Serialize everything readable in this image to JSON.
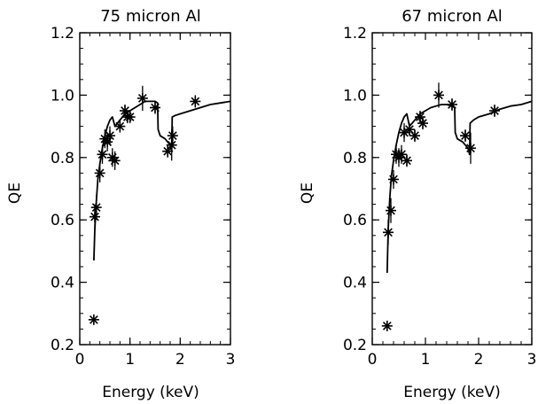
{
  "chart_data": [
    {
      "type": "scatter",
      "title": "75 micron Al",
      "xlabel": "Energy (keV)",
      "ylabel": "QE",
      "xlim": [
        0,
        3
      ],
      "ylim": [
        0.2,
        1.2
      ],
      "xticks": [
        "0",
        "1",
        "2",
        "3"
      ],
      "yticks": [
        "0.2",
        "0.4",
        "0.6",
        "0.8",
        "1.0",
        "1.2"
      ],
      "grid": false,
      "series": [
        {
          "kind": "line",
          "x": [
            0.28,
            0.3,
            0.33,
            0.36,
            0.4,
            0.45,
            0.5,
            0.55,
            0.6,
            0.65,
            0.7,
            0.75,
            0.8,
            0.85,
            0.9,
            1.0,
            1.1,
            1.2,
            1.3,
            1.4,
            1.5,
            1.55,
            1.56,
            1.6,
            1.7,
            1.8,
            1.83,
            1.84,
            1.9,
            2.0,
            2.2,
            2.4,
            2.6,
            2.8,
            3.0
          ],
          "y": [
            0.47,
            0.57,
            0.66,
            0.73,
            0.78,
            0.83,
            0.87,
            0.9,
            0.92,
            0.93,
            0.9,
            0.91,
            0.92,
            0.93,
            0.94,
            0.95,
            0.96,
            0.97,
            0.98,
            0.98,
            0.98,
            0.975,
            0.89,
            0.87,
            0.86,
            0.84,
            0.82,
            0.93,
            0.935,
            0.94,
            0.95,
            0.96,
            0.97,
            0.975,
            0.98
          ]
        },
        {
          "kind": "points",
          "x": [
            0.28,
            0.3,
            0.33,
            0.4,
            0.45,
            0.5,
            0.55,
            0.6,
            0.65,
            0.7,
            0.8,
            0.9,
            0.95,
            1.0,
            1.25,
            1.5,
            1.75,
            1.83,
            1.85,
            2.3
          ],
          "y": [
            0.28,
            0.61,
            0.64,
            0.75,
            0.81,
            0.86,
            0.85,
            0.87,
            0.8,
            0.79,
            0.9,
            0.95,
            0.93,
            0.93,
            0.99,
            0.96,
            0.82,
            0.84,
            0.87,
            0.98
          ],
          "err": [
            0,
            0.04,
            0.04,
            0.03,
            0.03,
            0.03,
            0.03,
            0.03,
            0.03,
            0.03,
            0.02,
            0.02,
            0.02,
            0.02,
            0.04,
            0.02,
            0.02,
            0.05,
            0.03,
            0.02
          ]
        }
      ]
    },
    {
      "type": "scatter",
      "title": "67 micron Al",
      "xlabel": "Energy (keV)",
      "ylabel": "QE",
      "xlim": [
        0,
        3
      ],
      "ylim": [
        0.2,
        1.2
      ],
      "xticks": [
        "0",
        "1",
        "2",
        "3"
      ],
      "yticks": [
        "0.2",
        "0.4",
        "0.6",
        "0.8",
        "1.0",
        "1.2"
      ],
      "grid": false,
      "series": [
        {
          "kind": "line",
          "x": [
            0.28,
            0.3,
            0.33,
            0.36,
            0.4,
            0.45,
            0.5,
            0.55,
            0.6,
            0.65,
            0.7,
            0.75,
            0.8,
            0.85,
            0.9,
            1.0,
            1.1,
            1.2,
            1.3,
            1.4,
            1.5,
            1.55,
            1.56,
            1.6,
            1.7,
            1.8,
            1.83,
            1.84,
            1.9,
            2.0,
            2.2,
            2.4,
            2.6,
            2.8,
            3.0
          ],
          "y": [
            0.43,
            0.57,
            0.67,
            0.74,
            0.79,
            0.84,
            0.88,
            0.91,
            0.93,
            0.94,
            0.9,
            0.91,
            0.92,
            0.93,
            0.94,
            0.95,
            0.96,
            0.965,
            0.97,
            0.97,
            0.965,
            0.96,
            0.88,
            0.86,
            0.85,
            0.83,
            0.81,
            0.91,
            0.92,
            0.93,
            0.94,
            0.955,
            0.965,
            0.97,
            0.98
          ]
        },
        {
          "kind": "points",
          "x": [
            0.28,
            0.3,
            0.35,
            0.4,
            0.45,
            0.5,
            0.55,
            0.6,
            0.65,
            0.7,
            0.8,
            0.9,
            0.95,
            1.25,
            1.5,
            1.75,
            1.85,
            2.3
          ],
          "y": [
            0.26,
            0.56,
            0.63,
            0.73,
            0.81,
            0.8,
            0.81,
            0.88,
            0.79,
            0.89,
            0.87,
            0.93,
            0.91,
            1.0,
            0.97,
            0.87,
            0.83,
            0.95
          ],
          "err": [
            0,
            0.04,
            0.04,
            0.03,
            0.03,
            0.03,
            0.03,
            0.03,
            0.02,
            0.02,
            0.02,
            0.02,
            0.02,
            0.04,
            0.02,
            0.02,
            0.05,
            0.02
          ]
        }
      ]
    }
  ]
}
